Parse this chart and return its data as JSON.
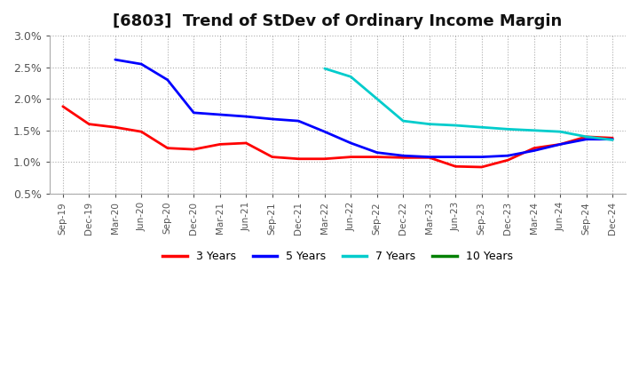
{
  "title": "[6803]  Trend of StDev of Ordinary Income Margin",
  "ylim": [
    0.005,
    0.03
  ],
  "yticks": [
    0.005,
    0.01,
    0.015,
    0.02,
    0.025,
    0.03
  ],
  "ytick_labels": [
    "0.5%",
    "1.0%",
    "1.5%",
    "2.0%",
    "2.5%",
    "3.0%"
  ],
  "x_labels": [
    "Sep-19",
    "Dec-19",
    "Mar-20",
    "Jun-20",
    "Sep-20",
    "Dec-20",
    "Mar-21",
    "Jun-21",
    "Sep-21",
    "Dec-21",
    "Mar-22",
    "Jun-22",
    "Sep-22",
    "Dec-22",
    "Mar-23",
    "Jun-23",
    "Sep-23",
    "Dec-23",
    "Mar-24",
    "Jun-24",
    "Sep-24",
    "Dec-24"
  ],
  "series": {
    "3 Years": {
      "color": "#FF0000",
      "values": [
        0.0188,
        0.016,
        0.0155,
        0.0148,
        0.0122,
        0.012,
        0.0128,
        0.013,
        0.0108,
        0.0105,
        0.0105,
        0.0108,
        0.0108,
        0.0107,
        0.0107,
        0.0093,
        0.0092,
        0.0103,
        0.0122,
        0.0128,
        0.014,
        0.0138
      ]
    },
    "5 Years": {
      "color": "#0000FF",
      "values": [
        null,
        null,
        0.0262,
        0.0255,
        0.023,
        0.0178,
        0.0175,
        0.0172,
        0.0168,
        0.0165,
        0.0148,
        0.013,
        0.0115,
        0.011,
        0.0108,
        0.0108,
        0.0108,
        0.011,
        0.0118,
        0.0128,
        0.0136,
        0.0136
      ]
    },
    "7 Years": {
      "color": "#00CCCC",
      "values": [
        null,
        null,
        null,
        null,
        null,
        null,
        null,
        null,
        null,
        null,
        0.0248,
        0.0235,
        0.02,
        0.0165,
        0.016,
        0.0158,
        0.0155,
        0.0152,
        0.015,
        0.0148,
        0.014,
        0.0135
      ]
    },
    "10 Years": {
      "color": "#008000",
      "values": [
        null,
        null,
        null,
        null,
        null,
        null,
        null,
        null,
        null,
        null,
        null,
        null,
        null,
        null,
        null,
        null,
        null,
        null,
        null,
        null,
        null,
        null
      ]
    }
  },
  "background_color": "#FFFFFF",
  "plot_bg_color": "#FFFFFF",
  "grid_color": "#AAAAAA",
  "title_fontsize": 13,
  "legend_colors": {
    "3 Years": "#FF0000",
    "5 Years": "#0000FF",
    "7 Years": "#00CCCC",
    "10 Years": "#008000"
  }
}
